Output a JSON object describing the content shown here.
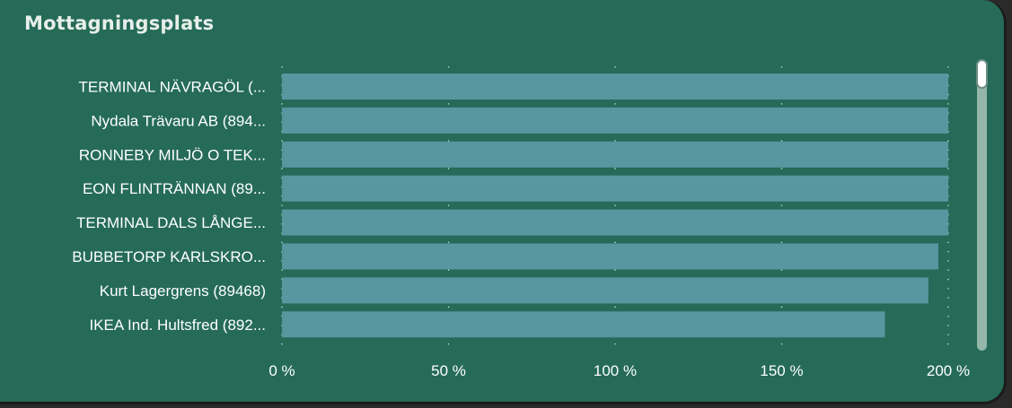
{
  "visual": {
    "title": "Mottagningsplats"
  },
  "colors": {
    "background": "#256b58",
    "bar": "#5897a0",
    "text": "#ffffff"
  },
  "chart_data": {
    "type": "bar",
    "orientation": "horizontal",
    "title": "Mottagningsplats",
    "categories": [
      "TERMINAL NÄVRAGÖL (...",
      "Nydala Trävaru AB (894...",
      "RONNEBY MILJÖ O TEK...",
      "EON FLINTRÄNNAN (89...",
      "TERMINAL DALS LÅNGE...",
      "BUBBETORP KARLSKRO...",
      "Kurt Lagergrens (89468)",
      "IKEA Ind. Hultsfred (892..."
    ],
    "values": [
      200,
      200,
      200,
      200,
      200,
      197,
      194,
      181
    ],
    "unit": "%",
    "xlim": [
      0,
      200
    ],
    "x_ticks": [
      0,
      50,
      100,
      150,
      200
    ],
    "x_tick_labels": [
      "0 %",
      "50 %",
      "100 %",
      "150 %",
      "200 %"
    ],
    "grid": "vertical-dotted",
    "legend": "none"
  }
}
